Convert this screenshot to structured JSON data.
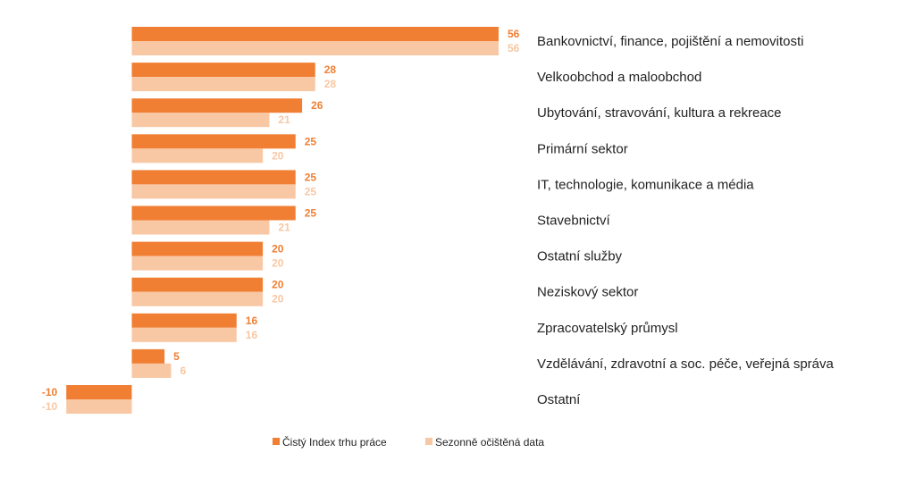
{
  "colors": {
    "primary": "#F07F33",
    "secondary": "#F8C7A3",
    "text": "#222222"
  },
  "chart_data": {
    "type": "bar",
    "orientation": "horizontal",
    "categories": [
      "Bankovnictví, finance, pojištění a nemovitosti",
      "Velkoobchod a maloobchod",
      "Ubytování, stravování, kultura a rekreace",
      "Primární sektor",
      "IT, technologie, komunikace a média",
      "Stavebnictví",
      "Ostatní služby",
      "Neziskový sektor",
      "Zpracovatelský průmysl",
      "Vzdělávání, zdravotní a soc. péče, veřejná správa",
      "Ostatní"
    ],
    "series": [
      {
        "name": "Čistý Index trhu práce",
        "values": [
          56,
          28,
          26,
          25,
          25,
          25,
          20,
          20,
          16,
          5,
          -10
        ]
      },
      {
        "name": "Sezonně očištěná data",
        "values": [
          56,
          28,
          21,
          20,
          25,
          21,
          20,
          20,
          16,
          6,
          -10
        ]
      }
    ],
    "legend": "bottom-center",
    "grid": false
  }
}
